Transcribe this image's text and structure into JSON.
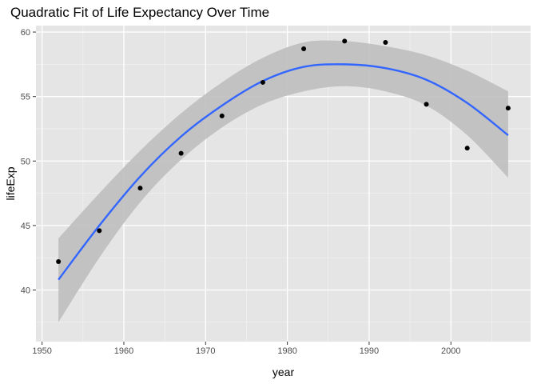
{
  "chart_data": {
    "type": "scatter",
    "title": "Quadratic Fit of Life Expectancy Over Time",
    "xlabel": "year",
    "ylabel": "lifeExp",
    "xlim": [
      1949.25,
      2009.75
    ],
    "ylim": [
      36.0,
      60.5
    ],
    "x_ticks": [
      1950,
      1960,
      1970,
      1980,
      1990,
      2000
    ],
    "x_tick_labels": [
      "1950",
      "1960",
      "1970",
      "1980",
      "1990",
      "2000"
    ],
    "y_ticks": [
      40,
      45,
      50,
      55,
      60
    ],
    "y_tick_labels": [
      "40",
      "45",
      "50",
      "55",
      "60"
    ],
    "grid": true,
    "background": "#e5e5e5",
    "point_color": "#000000",
    "fit_color": "#3366ff",
    "band_color": "#bebebe",
    "points": {
      "x": [
        1952,
        1957,
        1962,
        1967,
        1972,
        1977,
        1982,
        1987,
        1992,
        1997,
        2002,
        2007
      ],
      "y": [
        42.2,
        44.6,
        47.9,
        50.6,
        53.5,
        56.1,
        58.7,
        59.3,
        59.2,
        54.4,
        51.0,
        54.1
      ]
    },
    "fit": {
      "model": "quadratic",
      "x": [
        1952,
        1957,
        1962,
        1967,
        1972,
        1977,
        1982,
        1987,
        1992,
        1997,
        2002,
        2007
      ],
      "y": [
        40.8,
        45.0,
        48.8,
        51.9,
        54.3,
        56.2,
        57.3,
        57.5,
        57.2,
        56.3,
        54.5,
        52.0
      ],
      "lower": [
        37.5,
        42.5,
        46.8,
        50.1,
        52.6,
        54.4,
        55.4,
        55.8,
        55.4,
        54.3,
        52.0,
        48.7
      ],
      "upper": [
        44.0,
        47.5,
        50.8,
        53.7,
        56.1,
        58.0,
        59.2,
        59.3,
        58.9,
        58.2,
        57.0,
        55.4
      ]
    }
  }
}
